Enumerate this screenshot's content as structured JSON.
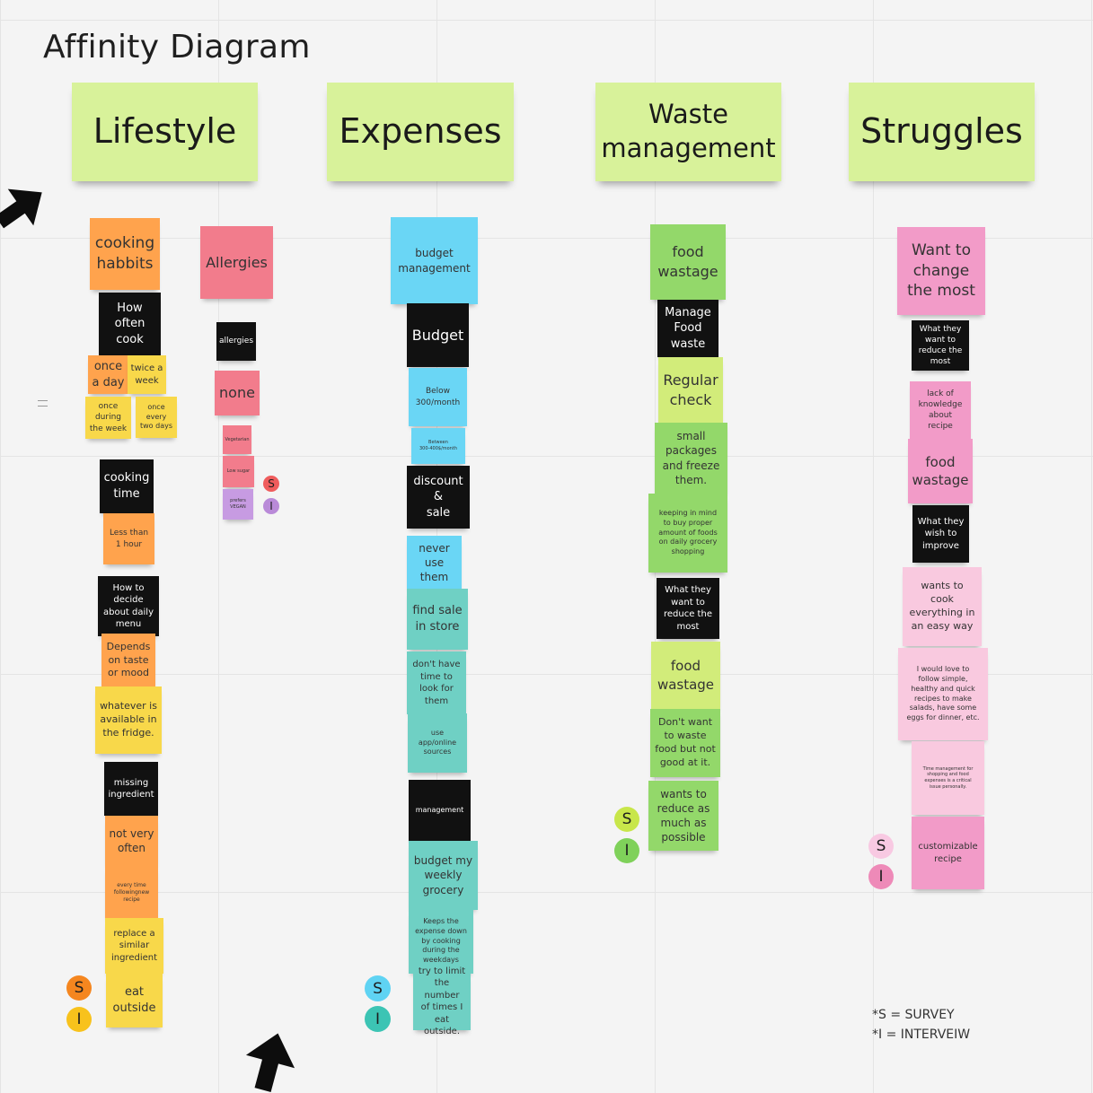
{
  "title": "Affinity Diagram",
  "colors": {
    "header": "#d8f29a",
    "orange": "#ffa34d",
    "yellow": "#f8d84a",
    "black": "#111111",
    "red": "#f27c8c",
    "purple": "#c79be2",
    "cyan": "#6ad6f5",
    "teal": "#6fd0c4",
    "green": "#93d86a",
    "lime": "#d2ec7a",
    "pink": "#f29bc8",
    "light_pink": "#f9c9df"
  },
  "headers": [
    {
      "text": "Lifestyle"
    },
    {
      "text": "Expenses"
    },
    {
      "text": "Waste\nmanagement"
    },
    {
      "text": "Struggles"
    }
  ],
  "notes": {
    "lifestyle": [
      {
        "text": "cooking\nhabbits",
        "color": "orange"
      },
      {
        "text": "How\noften\ncook",
        "color": "black"
      },
      {
        "text": "once\na day",
        "color": "orange"
      },
      {
        "text": "twice a\nweek",
        "color": "yellow"
      },
      {
        "text": "once\nduring\nthe week",
        "color": "yellow"
      },
      {
        "text": "once\nevery\ntwo days",
        "color": "yellow"
      },
      {
        "text": "cooking\ntime",
        "color": "black"
      },
      {
        "text": "Less than\n1 hour",
        "color": "orange"
      },
      {
        "text": "How to\ndecide\nabout daily\nmenu",
        "color": "black"
      },
      {
        "text": "Depends\non taste\nor mood",
        "color": "orange"
      },
      {
        "text": "whatever is\navailable in\nthe fridge.",
        "color": "yellow"
      },
      {
        "text": "missing\ningredient",
        "color": "black"
      },
      {
        "text": "not very\noften",
        "color": "orange"
      },
      {
        "text": "every time\nfollowingnew\nrecipe",
        "color": "orange"
      },
      {
        "text": "replace a\nsimilar\ningredient",
        "color": "yellow"
      },
      {
        "text": "eat\noutside",
        "color": "yellow"
      },
      {
        "text": "Allergies",
        "color": "red"
      },
      {
        "text": "allergies",
        "color": "black"
      },
      {
        "text": "none",
        "color": "red"
      },
      {
        "text": "Vegetarian",
        "color": "red"
      },
      {
        "text": "Low sugar",
        "color": "red"
      },
      {
        "text": "prefers\nVEGAN",
        "color": "purple"
      }
    ],
    "expenses": [
      {
        "text": "budget\nmanagement",
        "color": "cyan"
      },
      {
        "text": "Budget",
        "color": "black"
      },
      {
        "text": "Below\n300/month",
        "color": "cyan"
      },
      {
        "text": "Between\n300-400$/month",
        "color": "cyan"
      },
      {
        "text": "discount\n&\nsale",
        "color": "black"
      },
      {
        "text": "never\nuse\nthem",
        "color": "cyan"
      },
      {
        "text": "find sale\nin store",
        "color": "teal"
      },
      {
        "text": "don't have\ntime to\nlook for\nthem",
        "color": "teal"
      },
      {
        "text": "use\napp/online\nsources",
        "color": "teal"
      },
      {
        "text": "management",
        "color": "black"
      },
      {
        "text": "budget my\nweekly\ngrocery",
        "color": "teal"
      },
      {
        "text": "Keeps the\nexpense down\nby cooking\nduring the\nweekdays",
        "color": "teal"
      },
      {
        "text": "try to limit\nthe number\nof times I\neat outside.",
        "color": "teal"
      }
    ],
    "waste": [
      {
        "text": "food\nwastage",
        "color": "green"
      },
      {
        "text": "Manage\nFood\nwaste",
        "color": "black"
      },
      {
        "text": "Regular\ncheck",
        "color": "lime"
      },
      {
        "text": "small\npackages\nand freeze\nthem.",
        "color": "green"
      },
      {
        "text": "keeping in mind\nto buy proper\namount of foods\non daily grocery\nshopping",
        "color": "green"
      },
      {
        "text": "What they\nwant to\nreduce the\nmost",
        "color": "black"
      },
      {
        "text": "food\nwastage",
        "color": "lime"
      },
      {
        "text": "Don't want\nto waste\nfood but not\ngood at it.",
        "color": "green"
      },
      {
        "text": "wants to\nreduce as\nmuch as\npossible",
        "color": "green"
      }
    ],
    "struggles": [
      {
        "text": "Want to\nchange\nthe most",
        "color": "pink"
      },
      {
        "text": "What they\nwant to\nreduce the\nmost",
        "color": "black"
      },
      {
        "text": "lack of\nknowledge\nabout\nrecipe",
        "color": "pink"
      },
      {
        "text": "food\nwastage",
        "color": "pink"
      },
      {
        "text": "What they\nwish to\nimprove",
        "color": "black"
      },
      {
        "text": "wants to\ncook\neverything in\nan easy way",
        "color": "light_pink"
      },
      {
        "text": "I would love to\nfollow simple,\nhealthy and quick\nrecipes to make\nsalads, have some\neggs for dinner, etc.",
        "color": "light_pink"
      },
      {
        "text": "Time management for\nshopping and food\nexpenses is a critical\nissue personally.",
        "color": "light_pink"
      },
      {
        "text": "customizable\nrecipe",
        "color": "pink"
      }
    ]
  },
  "markers": [
    {
      "label": "S",
      "color": "#f5861f"
    },
    {
      "label": "I",
      "color": "#f8c21c"
    },
    {
      "label": "S",
      "color": "#ef5c5c"
    },
    {
      "label": "I",
      "color": "#b98ad8"
    },
    {
      "label": "S",
      "color": "#5fd3f3"
    },
    {
      "label": "I",
      "color": "#3cc4b4"
    },
    {
      "label": "S",
      "color": "#c8e64a"
    },
    {
      "label": "I",
      "color": "#7fd15a"
    },
    {
      "label": "S",
      "color": "#f8c9e2"
    },
    {
      "label": "I",
      "color": "#ee8ab8"
    }
  ],
  "legend": {
    "survey": "*S = SURVEY",
    "interview": "*I = INTERVEIW"
  },
  "arrows": [
    {
      "name": "arrow-pointer-icon"
    },
    {
      "name": "arrow-pointer-icon"
    }
  ]
}
